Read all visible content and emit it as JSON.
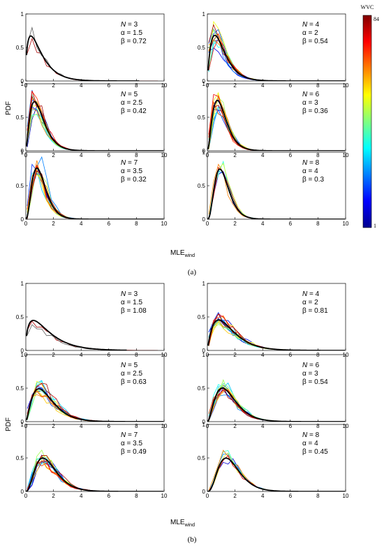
{
  "figure": {
    "caption_a": "(a)",
    "caption_b": "(b)",
    "ylabel": "PDF",
    "xlabel_main": "MLE",
    "xlabel_sub": "wind",
    "colorbar": {
      "title": "WVC",
      "max_label": "84",
      "min_label": "1",
      "min": 1,
      "max": 84
    },
    "colors": {
      "fit_curve": "#000000"
    }
  },
  "chart_data": [
    {
      "group": "a",
      "type": "line",
      "annotation": {
        "N": "3",
        "alpha": "1.5",
        "beta": "0.72"
      },
      "alpha": 1.5,
      "beta": 0.72,
      "xlim": [
        0,
        10
      ],
      "ylim": [
        0,
        1
      ],
      "xticks": [
        "0",
        "2",
        "4",
        "6",
        "8",
        "10"
      ],
      "yticks": [
        "0",
        "0.5",
        "1"
      ],
      "fit_xmax": 8.2,
      "n_empirical": 2,
      "spread": 0.25
    },
    {
      "group": "a",
      "type": "line",
      "annotation": {
        "N": "4",
        "alpha": "2",
        "beta": "0.54"
      },
      "alpha": 2,
      "beta": 0.54,
      "xlim": [
        0,
        10
      ],
      "ylim": [
        0,
        1
      ],
      "xticks": [
        "0",
        "2",
        "4",
        "6",
        "8",
        "10"
      ],
      "yticks": [
        "0",
        "0.5",
        "1"
      ],
      "fit_xmax": 10,
      "n_empirical": 14,
      "spread": 0.18
    },
    {
      "group": "a",
      "type": "line",
      "annotation": {
        "N": "5",
        "alpha": "2.5",
        "beta": "0.42"
      },
      "alpha": 2.5,
      "beta": 0.42,
      "xlim": [
        0,
        10
      ],
      "ylim": [
        0,
        1
      ],
      "xticks": [
        "0",
        "2",
        "4",
        "6",
        "8",
        "10"
      ],
      "yticks": [
        "0",
        "0.5",
        "1"
      ],
      "fit_xmax": 10,
      "n_empirical": 14,
      "spread": 0.18
    },
    {
      "group": "a",
      "type": "line",
      "annotation": {
        "N": "6",
        "alpha": "3",
        "beta": "0.36"
      },
      "alpha": 3,
      "beta": 0.36,
      "xlim": [
        0,
        10
      ],
      "ylim": [
        0,
        1
      ],
      "xticks": [
        "0",
        "2",
        "4",
        "6",
        "8",
        "10"
      ],
      "yticks": [
        "0",
        "0.5",
        "1"
      ],
      "fit_xmax": 10,
      "n_empirical": 14,
      "spread": 0.18
    },
    {
      "group": "a",
      "type": "line",
      "annotation": {
        "N": "7",
        "alpha": "3.5",
        "beta": "0.32"
      },
      "alpha": 3.5,
      "beta": 0.32,
      "xlim": [
        0,
        10
      ],
      "ylim": [
        0,
        1
      ],
      "xticks": [
        "0",
        "2",
        "4",
        "6",
        "8",
        "10"
      ],
      "yticks": [
        "0",
        "0.5",
        "1"
      ],
      "fit_xmax": 10,
      "n_empirical": 14,
      "spread": 0.18
    },
    {
      "group": "a",
      "type": "line",
      "annotation": {
        "N": "8",
        "alpha": "4",
        "beta": "0.3"
      },
      "alpha": 4,
      "beta": 0.3,
      "xlim": [
        0,
        10
      ],
      "ylim": [
        0,
        1
      ],
      "xticks": [
        "0",
        "2",
        "4",
        "6",
        "8",
        "10"
      ],
      "yticks": [
        "0",
        "0.5",
        "1"
      ],
      "fit_xmax": 10,
      "n_empirical": 6,
      "spread": 0.12
    },
    {
      "group": "b",
      "type": "line",
      "annotation": {
        "N": "3",
        "alpha": "1.5",
        "beta": "1.08"
      },
      "alpha": 1.5,
      "beta": 1.08,
      "xlim": [
        0,
        10
      ],
      "ylim": [
        0,
        1
      ],
      "xticks": [
        "0",
        "2",
        "4",
        "6",
        "8",
        "10"
      ],
      "yticks": [
        "0",
        "0.5",
        "1"
      ],
      "fit_xmax": 7.3,
      "n_empirical": 2,
      "spread": 0.25
    },
    {
      "group": "b",
      "type": "line",
      "annotation": {
        "N": "4",
        "alpha": "2",
        "beta": "0.81"
      },
      "alpha": 2,
      "beta": 0.81,
      "xlim": [
        0,
        10
      ],
      "ylim": [
        0,
        1
      ],
      "xticks": [
        "0",
        "2",
        "4",
        "6",
        "8",
        "10"
      ],
      "yticks": [
        "0",
        "0.5",
        "1"
      ],
      "fit_xmax": 10,
      "n_empirical": 14,
      "spread": 0.15
    },
    {
      "group": "b",
      "type": "line",
      "annotation": {
        "N": "5",
        "alpha": "2.5",
        "beta": "0.63"
      },
      "alpha": 2.5,
      "beta": 0.63,
      "xlim": [
        0,
        10
      ],
      "ylim": [
        0,
        1
      ],
      "xticks": [
        "0",
        "2",
        "4",
        "6",
        "8",
        "10"
      ],
      "yticks": [
        "0",
        "0.5",
        "1"
      ],
      "fit_xmax": 10,
      "n_empirical": 14,
      "spread": 0.15
    },
    {
      "group": "b",
      "type": "line",
      "annotation": {
        "N": "6",
        "alpha": "3",
        "beta": "0.54"
      },
      "alpha": 3,
      "beta": 0.54,
      "xlim": [
        0,
        10
      ],
      "ylim": [
        0,
        1
      ],
      "xticks": [
        "0",
        "2",
        "4",
        "6",
        "8",
        "10"
      ],
      "yticks": [
        "0",
        "0.5",
        "1"
      ],
      "fit_xmax": 10,
      "n_empirical": 14,
      "spread": 0.15
    },
    {
      "group": "b",
      "type": "line",
      "annotation": {
        "N": "7",
        "alpha": "3.5",
        "beta": "0.49"
      },
      "alpha": 3.5,
      "beta": 0.49,
      "xlim": [
        0,
        10
      ],
      "ylim": [
        0,
        1
      ],
      "xticks": [
        "0",
        "2",
        "4",
        "6",
        "8",
        "10"
      ],
      "yticks": [
        "0",
        "0.5",
        "1"
      ],
      "fit_xmax": 10,
      "n_empirical": 14,
      "spread": 0.15
    },
    {
      "group": "b",
      "type": "line",
      "annotation": {
        "N": "8",
        "alpha": "4",
        "beta": "0.45"
      },
      "alpha": 4,
      "beta": 0.45,
      "xlim": [
        0,
        10
      ],
      "ylim": [
        0,
        1
      ],
      "xticks": [
        "0",
        "2",
        "4",
        "6",
        "8",
        "10"
      ],
      "yticks": [
        "0",
        "0.5",
        "1"
      ],
      "fit_xmax": 10,
      "n_empirical": 6,
      "spread": 0.12
    }
  ]
}
